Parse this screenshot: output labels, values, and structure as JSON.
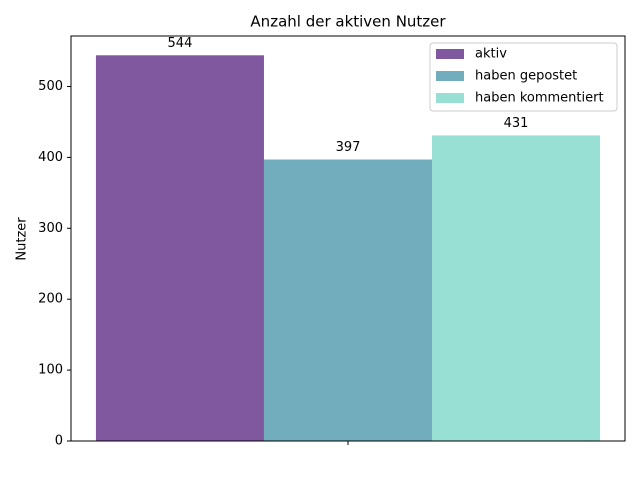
{
  "chart_data": {
    "type": "bar",
    "title": "Anzahl der aktiven Nutzer",
    "y_label": "Nutzer",
    "categories": [
      null
    ],
    "series": [
      {
        "name": "aktiv",
        "color": "#7f58a0",
        "values": [
          544
        ]
      },
      {
        "name": "haben gepostet",
        "color": "#72adbd",
        "values": [
          397
        ]
      },
      {
        "name": "haben kommentiert",
        "color": "#98dfd4",
        "values": [
          431
        ]
      }
    ],
    "ylim": [
      0,
      571.2
    ],
    "yticks": [
      0,
      100,
      200,
      300,
      400,
      500
    ],
    "legend": "upper right"
  }
}
